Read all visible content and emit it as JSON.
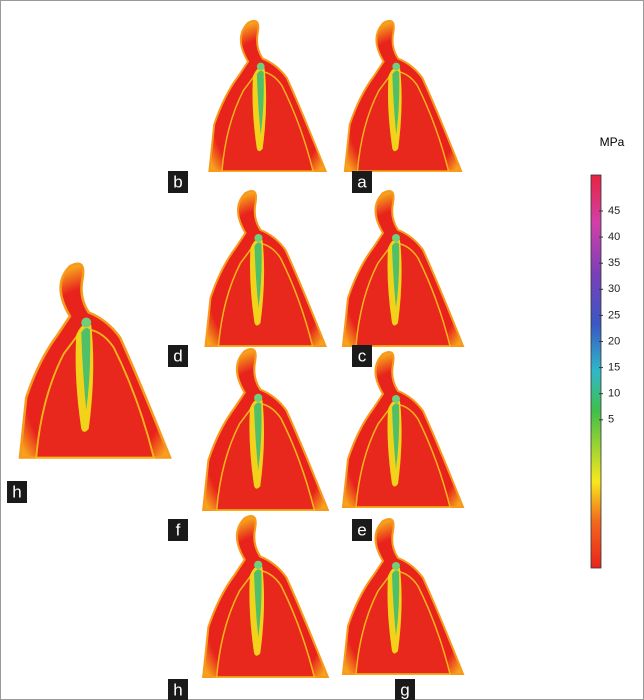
{
  "panels": [
    {
      "label": "b"
    },
    {
      "label": "a"
    },
    {
      "label": "d"
    },
    {
      "label": "c"
    },
    {
      "label": "f"
    },
    {
      "label": "e"
    },
    {
      "label": "h"
    },
    {
      "label": "g"
    },
    {
      "label": "h"
    }
  ],
  "colorbar": {
    "unit": "MPa",
    "ticks": [
      45,
      40,
      35,
      30,
      25,
      20,
      15,
      10,
      5
    ]
  }
}
